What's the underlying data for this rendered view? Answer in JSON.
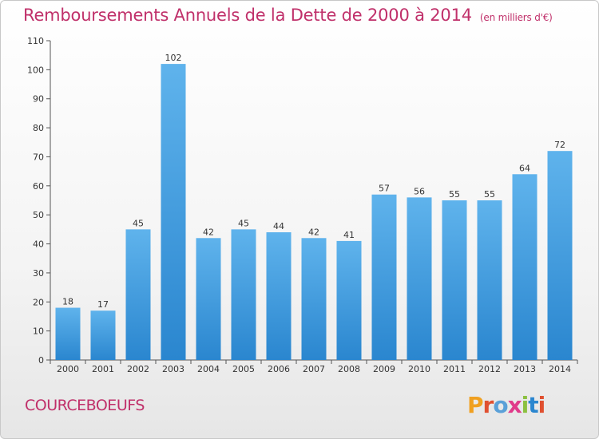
{
  "title": "Remboursements Annuels de la Dette de 2000 à 2014",
  "unit": "(en milliers d'€)",
  "commune": "COURCEBOEUFS",
  "logo": "Proxiti",
  "colors": {
    "title": "#c0306a",
    "bar_top": "#5fb3ec",
    "bar_bottom": "#2a86cf",
    "logo_letters": [
      "#f0a020",
      "#e05030",
      "#5aa0d8",
      "#e03a8a",
      "#8cc040",
      "#2a86cf",
      "#e05030"
    ]
  },
  "chart_data": {
    "type": "bar",
    "categories": [
      "2000",
      "2001",
      "2002",
      "2003",
      "2004",
      "2005",
      "2006",
      "2007",
      "2008",
      "2009",
      "2010",
      "2011",
      "2012",
      "2013",
      "2014"
    ],
    "values": [
      18,
      17,
      45,
      102,
      42,
      45,
      44,
      42,
      41,
      57,
      56,
      55,
      55,
      64,
      72
    ],
    "ylim": [
      0,
      110
    ],
    "yticks": [
      0,
      10,
      20,
      30,
      40,
      50,
      60,
      70,
      80,
      90,
      100,
      110
    ],
    "grid": false,
    "data_labels": true
  }
}
